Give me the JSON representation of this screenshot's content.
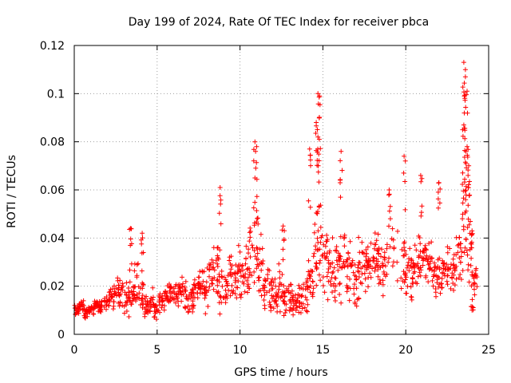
{
  "chart_data": {
    "type": "scatter",
    "title": "Day 199 of 2024, Rate Of TEC Index for receiver pbca",
    "xlabel": "GPS time / hours",
    "ylabel": "ROTI / TECUs",
    "xlim": [
      0,
      25
    ],
    "ylim": [
      0,
      0.12
    ],
    "x_ticks": [
      "0",
      "5",
      "10",
      "15",
      "20",
      "25"
    ],
    "y_ticks": [
      "0",
      "0.02",
      "0.04",
      "0.06",
      "0.08",
      "0.1",
      "0.12"
    ],
    "grid": true,
    "marker": "+",
    "color": "#ff0000",
    "series": [
      {
        "x": [
          0.0,
          0.3,
          0.6,
          0.9,
          1.2,
          1.5,
          1.8,
          2.1,
          2.4,
          2.7,
          3.0,
          3.3,
          3.6,
          3.9,
          4.2,
          4.5,
          4.8,
          5.1,
          5.4,
          5.7,
          6.0,
          6.3,
          6.6,
          6.9,
          7.2,
          7.5,
          7.8,
          8.1,
          8.4,
          8.7,
          9.0,
          9.3,
          9.6,
          9.9,
          10.2,
          10.5,
          10.8,
          11.1,
          11.4,
          11.7,
          12.0,
          12.3,
          12.6,
          12.9,
          13.2,
          13.5,
          13.8,
          14.1,
          14.4,
          14.7,
          15.0,
          15.3,
          15.6,
          15.9,
          16.2,
          16.5,
          16.8,
          17.1,
          17.4,
          17.7,
          18.0,
          18.3,
          18.6,
          18.9,
          19.8,
          20.1,
          20.4,
          20.7,
          21.0,
          21.3,
          21.6,
          21.9,
          22.2,
          22.5,
          22.8,
          23.1,
          23.4,
          23.7,
          24.0
        ],
        "y": [
          0.01,
          0.012,
          0.009,
          0.01,
          0.012,
          0.011,
          0.013,
          0.015,
          0.018,
          0.016,
          0.014,
          0.017,
          0.02,
          0.015,
          0.012,
          0.013,
          0.011,
          0.014,
          0.016,
          0.018,
          0.017,
          0.019,
          0.015,
          0.016,
          0.02,
          0.022,
          0.018,
          0.023,
          0.025,
          0.02,
          0.019,
          0.024,
          0.022,
          0.025,
          0.026,
          0.032,
          0.035,
          0.028,
          0.02,
          0.018,
          0.016,
          0.019,
          0.015,
          0.017,
          0.012,
          0.014,
          0.018,
          0.022,
          0.03,
          0.035,
          0.03,
          0.027,
          0.025,
          0.023,
          0.028,
          0.024,
          0.02,
          0.026,
          0.03,
          0.028,
          0.032,
          0.03,
          0.029,
          0.034,
          0.03,
          0.025,
          0.028,
          0.03,
          0.033,
          0.029,
          0.025,
          0.024,
          0.027,
          0.026,
          0.03,
          0.032,
          0.05,
          0.04,
          0.02
        ],
        "spread": [
          0.002,
          0.002,
          0.002,
          0.002,
          0.003,
          0.003,
          0.003,
          0.004,
          0.005,
          0.006,
          0.006,
          0.007,
          0.008,
          0.007,
          0.005,
          0.005,
          0.004,
          0.004,
          0.005,
          0.005,
          0.005,
          0.006,
          0.006,
          0.006,
          0.006,
          0.007,
          0.008,
          0.009,
          0.01,
          0.01,
          0.008,
          0.008,
          0.008,
          0.009,
          0.01,
          0.014,
          0.016,
          0.012,
          0.009,
          0.008,
          0.007,
          0.008,
          0.007,
          0.007,
          0.005,
          0.006,
          0.008,
          0.01,
          0.014,
          0.018,
          0.014,
          0.012,
          0.012,
          0.012,
          0.013,
          0.012,
          0.01,
          0.011,
          0.01,
          0.01,
          0.01,
          0.01,
          0.01,
          0.012,
          0.01,
          0.01,
          0.01,
          0.01,
          0.01,
          0.008,
          0.008,
          0.008,
          0.008,
          0.008,
          0.01,
          0.012,
          0.02,
          0.02,
          0.008
        ]
      }
    ],
    "spikes": [
      {
        "x": 3.4,
        "y": 0.044
      },
      {
        "x": 4.1,
        "y": 0.042
      },
      {
        "x": 8.8,
        "y": 0.061
      },
      {
        "x": 10.9,
        "y": 0.08
      },
      {
        "x": 11.0,
        "y": 0.078
      },
      {
        "x": 12.6,
        "y": 0.045
      },
      {
        "x": 14.2,
        "y": 0.077
      },
      {
        "x": 14.7,
        "y": 0.1
      },
      {
        "x": 14.8,
        "y": 0.099
      },
      {
        "x": 14.6,
        "y": 0.088
      },
      {
        "x": 14.7,
        "y": 0.082
      },
      {
        "x": 16.1,
        "y": 0.076
      },
      {
        "x": 19.0,
        "y": 0.06
      },
      {
        "x": 19.9,
        "y": 0.074
      },
      {
        "x": 20.9,
        "y": 0.066
      },
      {
        "x": 22.0,
        "y": 0.063
      },
      {
        "x": 23.5,
        "y": 0.113
      },
      {
        "x": 23.6,
        "y": 0.11
      },
      {
        "x": 23.6,
        "y": 0.107
      },
      {
        "x": 23.7,
        "y": 0.101
      },
      {
        "x": 23.5,
        "y": 0.087
      },
      {
        "x": 23.7,
        "y": 0.078
      },
      {
        "x": 23.8,
        "y": 0.07
      },
      {
        "x": 24.0,
        "y": 0.043
      },
      {
        "x": 24.0,
        "y": 0.01
      }
    ]
  }
}
